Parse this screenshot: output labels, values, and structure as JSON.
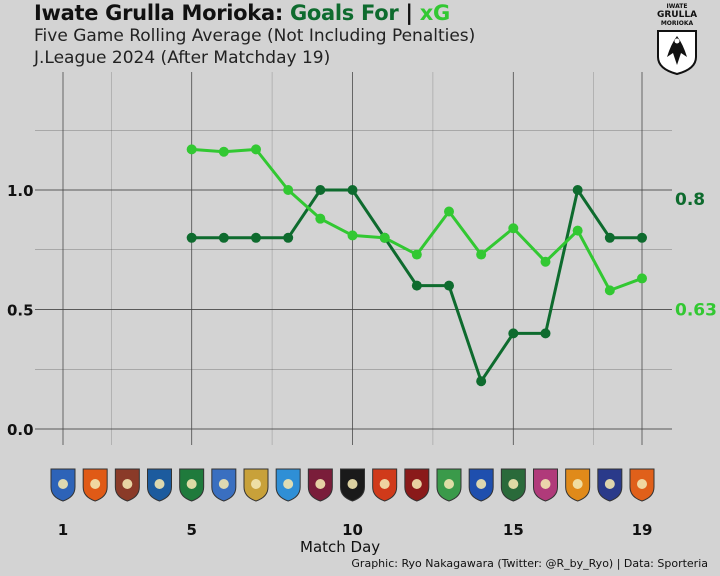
{
  "title": {
    "prefix": "Iwate Grulla Morioka:",
    "goals_for": "Goals For",
    "separator": "|",
    "xg": "xG"
  },
  "subtitle1": "Five Game Rolling Average (Not Including Penalties)",
  "subtitle2": "J.League 2024 (After Matchday 19)",
  "club_logo": {
    "line1": "IWATE",
    "line2": "GRULLA",
    "line3": "MORIOKA"
  },
  "xlabel": "Match Day",
  "credit": "Graphic: Ryo Nakagawara (Twitter: @R_by_Ryo) | Data: Sporteria",
  "colors": {
    "goals_for": "#0e6b2e",
    "xg": "#32c832",
    "background": "#d3d3d3",
    "grid": "#444444"
  },
  "chart_data": {
    "type": "line",
    "x": [
      5,
      6,
      7,
      8,
      9,
      10,
      11,
      12,
      13,
      14,
      15,
      16,
      17,
      18,
      19
    ],
    "series": [
      {
        "name": "Goals For",
        "color": "#0e6b2e",
        "end_label": "0.8",
        "values": [
          0.8,
          0.8,
          0.8,
          0.8,
          1.0,
          1.0,
          0.8,
          0.6,
          0.6,
          0.2,
          0.4,
          0.4,
          1.0,
          0.8,
          0.8
        ]
      },
      {
        "name": "xG",
        "color": "#32c832",
        "end_label": "0.63",
        "values": [
          1.17,
          1.16,
          1.17,
          1.0,
          0.88,
          0.81,
          0.8,
          0.73,
          0.91,
          0.73,
          0.84,
          0.7,
          0.83,
          0.58,
          0.63
        ]
      }
    ],
    "xlim": [
      1,
      19
    ],
    "ylim": [
      0,
      1.2
    ],
    "xticks": [
      1,
      5,
      10,
      15,
      19
    ],
    "yticks": [
      0.0,
      0.5,
      1.0
    ],
    "ytick_labels": [
      "0.0",
      "0.5",
      "1.0"
    ],
    "opponent_badges": 19,
    "grid": true,
    "legend": "none (title colors)"
  }
}
